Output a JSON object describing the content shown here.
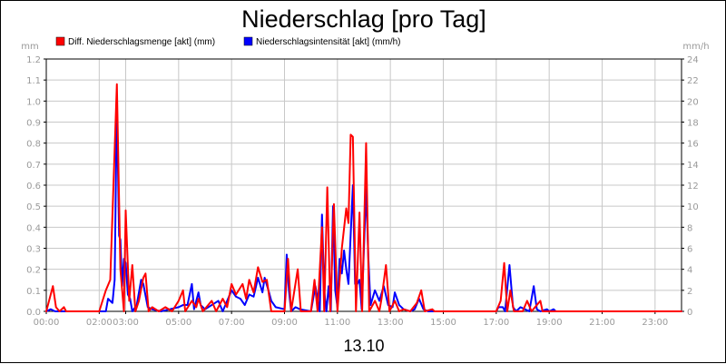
{
  "chart_data": {
    "type": "line",
    "title": "Niederschlag [pro Tag]",
    "xlabel": "13.10",
    "ylabel_left": "mm",
    "ylabel_right": "mm/h",
    "x_range": [
      "00:00",
      "24:00"
    ],
    "x_ticks": [
      "00:00",
      "02:00",
      "03:00",
      "05:00",
      "07:00",
      "09:00",
      "11:00",
      "13:00",
      "15:00",
      "17:00",
      "19:00",
      "21:00",
      "23:00"
    ],
    "y_left": {
      "min": 0,
      "max": 1.2,
      "ticks": [
        "0.0",
        "0.1",
        "0.2",
        "0.3",
        "0.4",
        "0.5",
        "0.6",
        "0.7",
        "0.8",
        "0.9",
        "1.0",
        "1.1",
        "1.2"
      ]
    },
    "y_right": {
      "min": 0,
      "max": 24,
      "ticks": [
        "0",
        "2",
        "4",
        "6",
        "8",
        "10",
        "12",
        "14",
        "16",
        "18",
        "20",
        "22",
        "24"
      ]
    },
    "grid": true,
    "legend_position": "top-left",
    "series": [
      {
        "name": "Diff. Niederschlagsmenge [akt] (mm)",
        "axis": "left",
        "color": "#ff0000",
        "points": [
          [
            "00:00",
            0.0
          ],
          [
            "00:15",
            0.12
          ],
          [
            "00:22",
            0.02
          ],
          [
            "00:30",
            0.0
          ],
          [
            "00:40",
            0.02
          ],
          [
            "00:45",
            0.0
          ],
          [
            "02:00",
            0.0
          ],
          [
            "02:15",
            0.1
          ],
          [
            "02:25",
            0.15
          ],
          [
            "02:40",
            1.08
          ],
          [
            "02:48",
            0.2
          ],
          [
            "02:56",
            0.0
          ],
          [
            "03:00",
            0.48
          ],
          [
            "03:08",
            0.05
          ],
          [
            "03:15",
            0.22
          ],
          [
            "03:22",
            0.0
          ],
          [
            "03:30",
            0.05
          ],
          [
            "03:40",
            0.16
          ],
          [
            "03:45",
            0.18
          ],
          [
            "03:52",
            0.0
          ],
          [
            "04:00",
            0.02
          ],
          [
            "04:15",
            0.0
          ],
          [
            "04:30",
            0.02
          ],
          [
            "04:45",
            0.0
          ],
          [
            "05:00",
            0.05
          ],
          [
            "05:10",
            0.1
          ],
          [
            "05:15",
            0.0
          ],
          [
            "05:30",
            0.05
          ],
          [
            "05:40",
            0.02
          ],
          [
            "05:45",
            0.06
          ],
          [
            "05:55",
            0.0
          ],
          [
            "06:15",
            0.05
          ],
          [
            "06:25",
            0.0
          ],
          [
            "06:40",
            0.06
          ],
          [
            "06:50",
            0.02
          ],
          [
            "07:00",
            0.13
          ],
          [
            "07:10",
            0.08
          ],
          [
            "07:25",
            0.13
          ],
          [
            "07:33",
            0.06
          ],
          [
            "07:40",
            0.15
          ],
          [
            "07:50",
            0.09
          ],
          [
            "08:00",
            0.21
          ],
          [
            "08:10",
            0.14
          ],
          [
            "08:20",
            0.15
          ],
          [
            "08:30",
            0.0
          ],
          [
            "08:45",
            0.0
          ],
          [
            "09:00",
            0.0
          ],
          [
            "09:08",
            0.25
          ],
          [
            "09:15",
            0.0
          ],
          [
            "09:30",
            0.2
          ],
          [
            "09:37",
            0.0
          ],
          [
            "10:00",
            0.0
          ],
          [
            "10:08",
            0.15
          ],
          [
            "10:15",
            0.0
          ],
          [
            "10:25",
            0.4
          ],
          [
            "10:30",
            0.0
          ],
          [
            "10:37",
            0.59
          ],
          [
            "10:44",
            0.0
          ],
          [
            "10:52",
            0.51
          ],
          [
            "11:00",
            0.0
          ],
          [
            "11:10",
            0.3
          ],
          [
            "11:20",
            0.49
          ],
          [
            "11:25",
            0.42
          ],
          [
            "11:30",
            0.84
          ],
          [
            "11:35",
            0.83
          ],
          [
            "11:42",
            0.0
          ],
          [
            "11:50",
            0.47
          ],
          [
            "11:56",
            0.0
          ],
          [
            "12:05",
            0.8
          ],
          [
            "12:12",
            0.0
          ],
          [
            "12:25",
            0.05
          ],
          [
            "12:35",
            0.0
          ],
          [
            "12:40",
            0.06
          ],
          [
            "12:50",
            0.22
          ],
          [
            "12:58",
            0.0
          ],
          [
            "13:10",
            0.05
          ],
          [
            "13:20",
            0.0
          ],
          [
            "13:30",
            0.01
          ],
          [
            "13:45",
            0.0
          ],
          [
            "14:00",
            0.04
          ],
          [
            "14:10",
            0.1
          ],
          [
            "14:18",
            0.0
          ],
          [
            "14:35",
            0.01
          ],
          [
            "14:40",
            0.0
          ],
          [
            "17:00",
            0.0
          ],
          [
            "17:10",
            0.05
          ],
          [
            "17:18",
            0.23
          ],
          [
            "17:25",
            0.0
          ],
          [
            "17:32",
            0.1
          ],
          [
            "17:40",
            0.0
          ],
          [
            "18:00",
            0.0
          ],
          [
            "18:10",
            0.05
          ],
          [
            "18:20",
            0.0
          ],
          [
            "18:40",
            0.05
          ],
          [
            "18:45",
            0.0
          ],
          [
            "24:00",
            0.0
          ]
        ]
      },
      {
        "name": "Niederschlagsintensität [akt] (mm/h)",
        "axis": "right",
        "color": "#0000ff",
        "points": [
          [
            "00:00",
            0.0
          ],
          [
            "00:10",
            0.2
          ],
          [
            "00:20",
            0.0
          ],
          [
            "02:15",
            0.0
          ],
          [
            "02:20",
            1.2
          ],
          [
            "02:30",
            0.8
          ],
          [
            "02:35",
            3.0
          ],
          [
            "02:40",
            20.0
          ],
          [
            "02:45",
            7.2
          ],
          [
            "02:48",
            6.8
          ],
          [
            "02:52",
            2.4
          ],
          [
            "02:56",
            5.0
          ],
          [
            "03:00",
            4.6
          ],
          [
            "03:05",
            1.6
          ],
          [
            "03:10",
            1.2
          ],
          [
            "03:15",
            0.0
          ],
          [
            "03:25",
            0.6
          ],
          [
            "03:35",
            3.0
          ],
          [
            "03:40",
            2.6
          ],
          [
            "03:50",
            0.4
          ],
          [
            "04:00",
            0.2
          ],
          [
            "04:20",
            0.0
          ],
          [
            "04:40",
            0.2
          ],
          [
            "05:00",
            0.4
          ],
          [
            "05:10",
            0.6
          ],
          [
            "05:20",
            0.6
          ],
          [
            "05:30",
            2.6
          ],
          [
            "05:35",
            0.2
          ],
          [
            "05:45",
            1.8
          ],
          [
            "05:50",
            0.6
          ],
          [
            "06:00",
            0.2
          ],
          [
            "06:15",
            0.6
          ],
          [
            "06:30",
            1.0
          ],
          [
            "06:40",
            0.0
          ],
          [
            "06:50",
            1.0
          ],
          [
            "07:00",
            2.0
          ],
          [
            "07:10",
            1.4
          ],
          [
            "07:20",
            1.2
          ],
          [
            "07:30",
            0.6
          ],
          [
            "07:40",
            1.6
          ],
          [
            "07:50",
            1.4
          ],
          [
            "08:00",
            3.2
          ],
          [
            "08:10",
            1.8
          ],
          [
            "08:15",
            3.2
          ],
          [
            "08:25",
            1.8
          ],
          [
            "08:30",
            1.0
          ],
          [
            "08:40",
            0.4
          ],
          [
            "09:00",
            0.2
          ],
          [
            "09:05",
            5.4
          ],
          [
            "09:10",
            2.0
          ],
          [
            "09:15",
            0.0
          ],
          [
            "09:25",
            0.4
          ],
          [
            "09:35",
            0.2
          ],
          [
            "10:00",
            0.0
          ],
          [
            "10:10",
            2.4
          ],
          [
            "10:20",
            0.0
          ],
          [
            "10:25",
            9.2
          ],
          [
            "10:30",
            2.0
          ],
          [
            "10:35",
            0.0
          ],
          [
            "10:40",
            2.4
          ],
          [
            "10:45",
            0.0
          ],
          [
            "10:50",
            10.0
          ],
          [
            "10:55",
            2.0
          ],
          [
            "11:00",
            0.4
          ],
          [
            "11:05",
            5.0
          ],
          [
            "11:10",
            3.6
          ],
          [
            "11:15",
            5.8
          ],
          [
            "11:20",
            4.0
          ],
          [
            "11:25",
            2.6
          ],
          [
            "11:35",
            12.0
          ],
          [
            "11:40",
            2.6
          ],
          [
            "11:45",
            2.6
          ],
          [
            "11:50",
            3.0
          ],
          [
            "11:55",
            0.2
          ],
          [
            "12:05",
            11.6
          ],
          [
            "12:10",
            5.2
          ],
          [
            "12:15",
            0.6
          ],
          [
            "12:25",
            2.0
          ],
          [
            "12:35",
            1.0
          ],
          [
            "12:45",
            2.4
          ],
          [
            "12:55",
            0.6
          ],
          [
            "13:05",
            0.4
          ],
          [
            "13:10",
            1.8
          ],
          [
            "13:20",
            0.6
          ],
          [
            "13:30",
            0.2
          ],
          [
            "13:45",
            0.0
          ],
          [
            "13:55",
            0.2
          ],
          [
            "14:05",
            1.2
          ],
          [
            "14:15",
            0.2
          ],
          [
            "14:25",
            0.0
          ],
          [
            "17:00",
            0.0
          ],
          [
            "17:05",
            0.4
          ],
          [
            "17:15",
            0.4
          ],
          [
            "17:20",
            0.0
          ],
          [
            "17:30",
            4.4
          ],
          [
            "17:38",
            0.4
          ],
          [
            "17:45",
            0.0
          ],
          [
            "17:55",
            0.4
          ],
          [
            "18:05",
            0.2
          ],
          [
            "18:15",
            0.0
          ],
          [
            "18:25",
            2.4
          ],
          [
            "18:32",
            0.2
          ],
          [
            "18:40",
            0.0
          ],
          [
            "18:55",
            0.2
          ],
          [
            "19:00",
            0.0
          ],
          [
            "19:10",
            0.2
          ],
          [
            "19:15",
            0.0
          ],
          [
            "24:00",
            0.0
          ]
        ]
      }
    ]
  }
}
